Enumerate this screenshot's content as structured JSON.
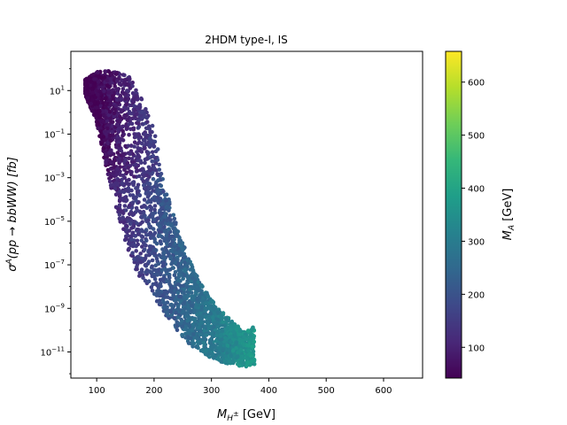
{
  "chart_data": {
    "type": "scatter",
    "title": "2HDM type-I, IS",
    "xlabel": {
      "main": "M",
      "sub": "H",
      "sup": "±",
      "unit": " [GeV]"
    },
    "ylabel": {
      "sigma": "σ",
      "sup": "A",
      "process": "(pp → bbWW) [fb]"
    },
    "xlim": [
      55,
      668
    ],
    "ylim_log10": [
      -12.2,
      2.8
    ],
    "x_ticks": [
      100,
      200,
      300,
      400,
      500,
      600
    ],
    "x_tick_labels": [
      "100",
      "200",
      "300",
      "400",
      "500",
      "600"
    ],
    "y_ticks_log10": [
      1,
      -1,
      -3,
      -5,
      -7,
      -9,
      -11
    ],
    "y_tick_labels": [
      {
        "base": "10",
        "exp": "1"
      },
      {
        "base": "10",
        "exp": "−1"
      },
      {
        "base": "10",
        "exp": "−3"
      },
      {
        "base": "10",
        "exp": "−5"
      },
      {
        "base": "10",
        "exp": "−7"
      },
      {
        "base": "10",
        "exp": "−9"
      },
      {
        "base": "10",
        "exp": "−11"
      }
    ],
    "colorbar": {
      "label": {
        "main": "M",
        "sub": "A",
        "unit": " [GeV]"
      },
      "range": [
        42,
        658
      ],
      "ticks": [
        100,
        200,
        300,
        400,
        500,
        600
      ],
      "tick_labels": [
        "100",
        "200",
        "300",
        "400",
        "500",
        "600"
      ],
      "colormap": "viridis"
    },
    "band_envelope": {
      "x": [
        80,
        100,
        120,
        140,
        160,
        180,
        200,
        220,
        240,
        260,
        280,
        300,
        320,
        340,
        360,
        375
      ],
      "ymax_log10": [
        1.5,
        1.9,
        1.9,
        1.8,
        1.6,
        0.6,
        -0.8,
        -3.5,
        -5.2,
        -6.7,
        -7.8,
        -8.6,
        -9.2,
        -9.7,
        -10.1,
        -9.8
      ],
      "ymin_log10": [
        0.8,
        -0.5,
        -3.0,
        -5.0,
        -6.8,
        -7.8,
        -8.5,
        -9.3,
        -10.0,
        -10.6,
        -11.0,
        -11.3,
        -11.5,
        -11.6,
        -11.7,
        -11.6
      ]
    },
    "color_trend": "M_A rises from about 60 GeV at low M_H± to about 380 GeV at the high-M_H± tail"
  },
  "colors": {
    "viridis": [
      "#440154",
      "#482878",
      "#3e4989",
      "#31688e",
      "#26828e",
      "#1f9e89",
      "#35b779",
      "#6ece58",
      "#b5de2b",
      "#fde725"
    ]
  }
}
